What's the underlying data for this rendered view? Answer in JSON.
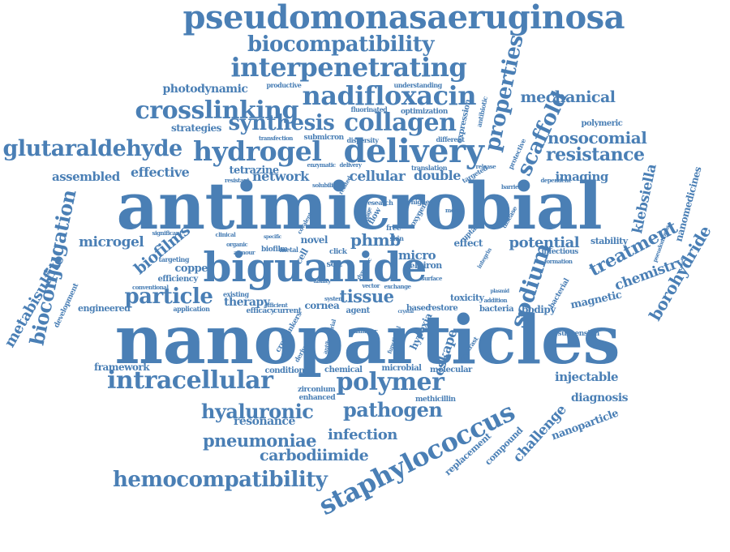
{
  "palette": {
    "word": "#4a7fb5"
  },
  "words": [
    "pseudomonasaeruginosa",
    "biocompatibility",
    "interpenetrating",
    "properties",
    "photodynamic",
    "productive",
    "understanding",
    "mechanical",
    "crosslinking",
    "nadifloxacin",
    "fluorinated",
    "optimization",
    "expression",
    "antibiotic",
    "synthesis",
    "collagen",
    "scaffold",
    "polymeric",
    "nosocomial",
    "strategies",
    "transfection",
    "submicron",
    "dispersity",
    "glutaraldehyde",
    "hydrogel",
    "delivery",
    "resistance",
    "assembled",
    "effective",
    "tetrazine",
    "network",
    "cellular",
    "double",
    "targeted",
    "imaging",
    "antimicrobial",
    "bioconjugation",
    "klebsiella",
    "nanomedicines",
    "treatment",
    "microgel",
    "phmb",
    "potential",
    "stability",
    "biofilms",
    "copper",
    "biguanide",
    "sodium",
    "chemistry",
    "borohydride",
    "metabisulfite",
    "particle",
    "efficiency",
    "targeting",
    "therapy",
    "tissue",
    "cornea",
    "novel",
    "micro",
    "self",
    "iron",
    "effect",
    "infectious",
    "magnetic",
    "bodipy",
    "engineered",
    "application",
    "nanoparticles",
    "eskape",
    "toxicity",
    "restore",
    "agent",
    "based",
    "hypoxia",
    "framework",
    "intracellular",
    "polymer",
    "injectable",
    "diagnosis",
    "condition",
    "chemical",
    "microbial",
    "molecular",
    "zirconium",
    "enhanced",
    "methicillin",
    "staphylococcus",
    "hyaluronic",
    "pathogen",
    "resonance",
    "infection",
    "pneumoniae",
    "challenge",
    "compound",
    "nanoparticle",
    "carbodiimide",
    "replacement",
    "hemocompatibility",
    "clinical",
    "organic",
    "armour",
    "biofilm",
    "specific",
    "metal",
    "free",
    "skin",
    "uptake",
    "research",
    "higher",
    "oxygen",
    "flow",
    "model",
    "cell",
    "click",
    "soft",
    "ability",
    "efficacy",
    "current",
    "suspension",
    "bacteria",
    "bacterial",
    "addition",
    "formation",
    "pseudomonas",
    "dependent",
    "disease",
    "protective",
    "different",
    "translation",
    "release",
    "existing",
    "conventional",
    "significant",
    "development",
    "crosslinkers",
    "derivative",
    "antibacterial",
    "functional",
    "contrast",
    "diameter",
    "efficient",
    "system",
    "vector",
    "exchange",
    "crystal",
    "surface",
    "plasmid",
    "enzymatic",
    "resistant",
    "related",
    "image",
    "delivery",
    "solubility",
    "covalent",
    "barrier",
    "dynamic",
    "integrin",
    "positive"
  ]
}
